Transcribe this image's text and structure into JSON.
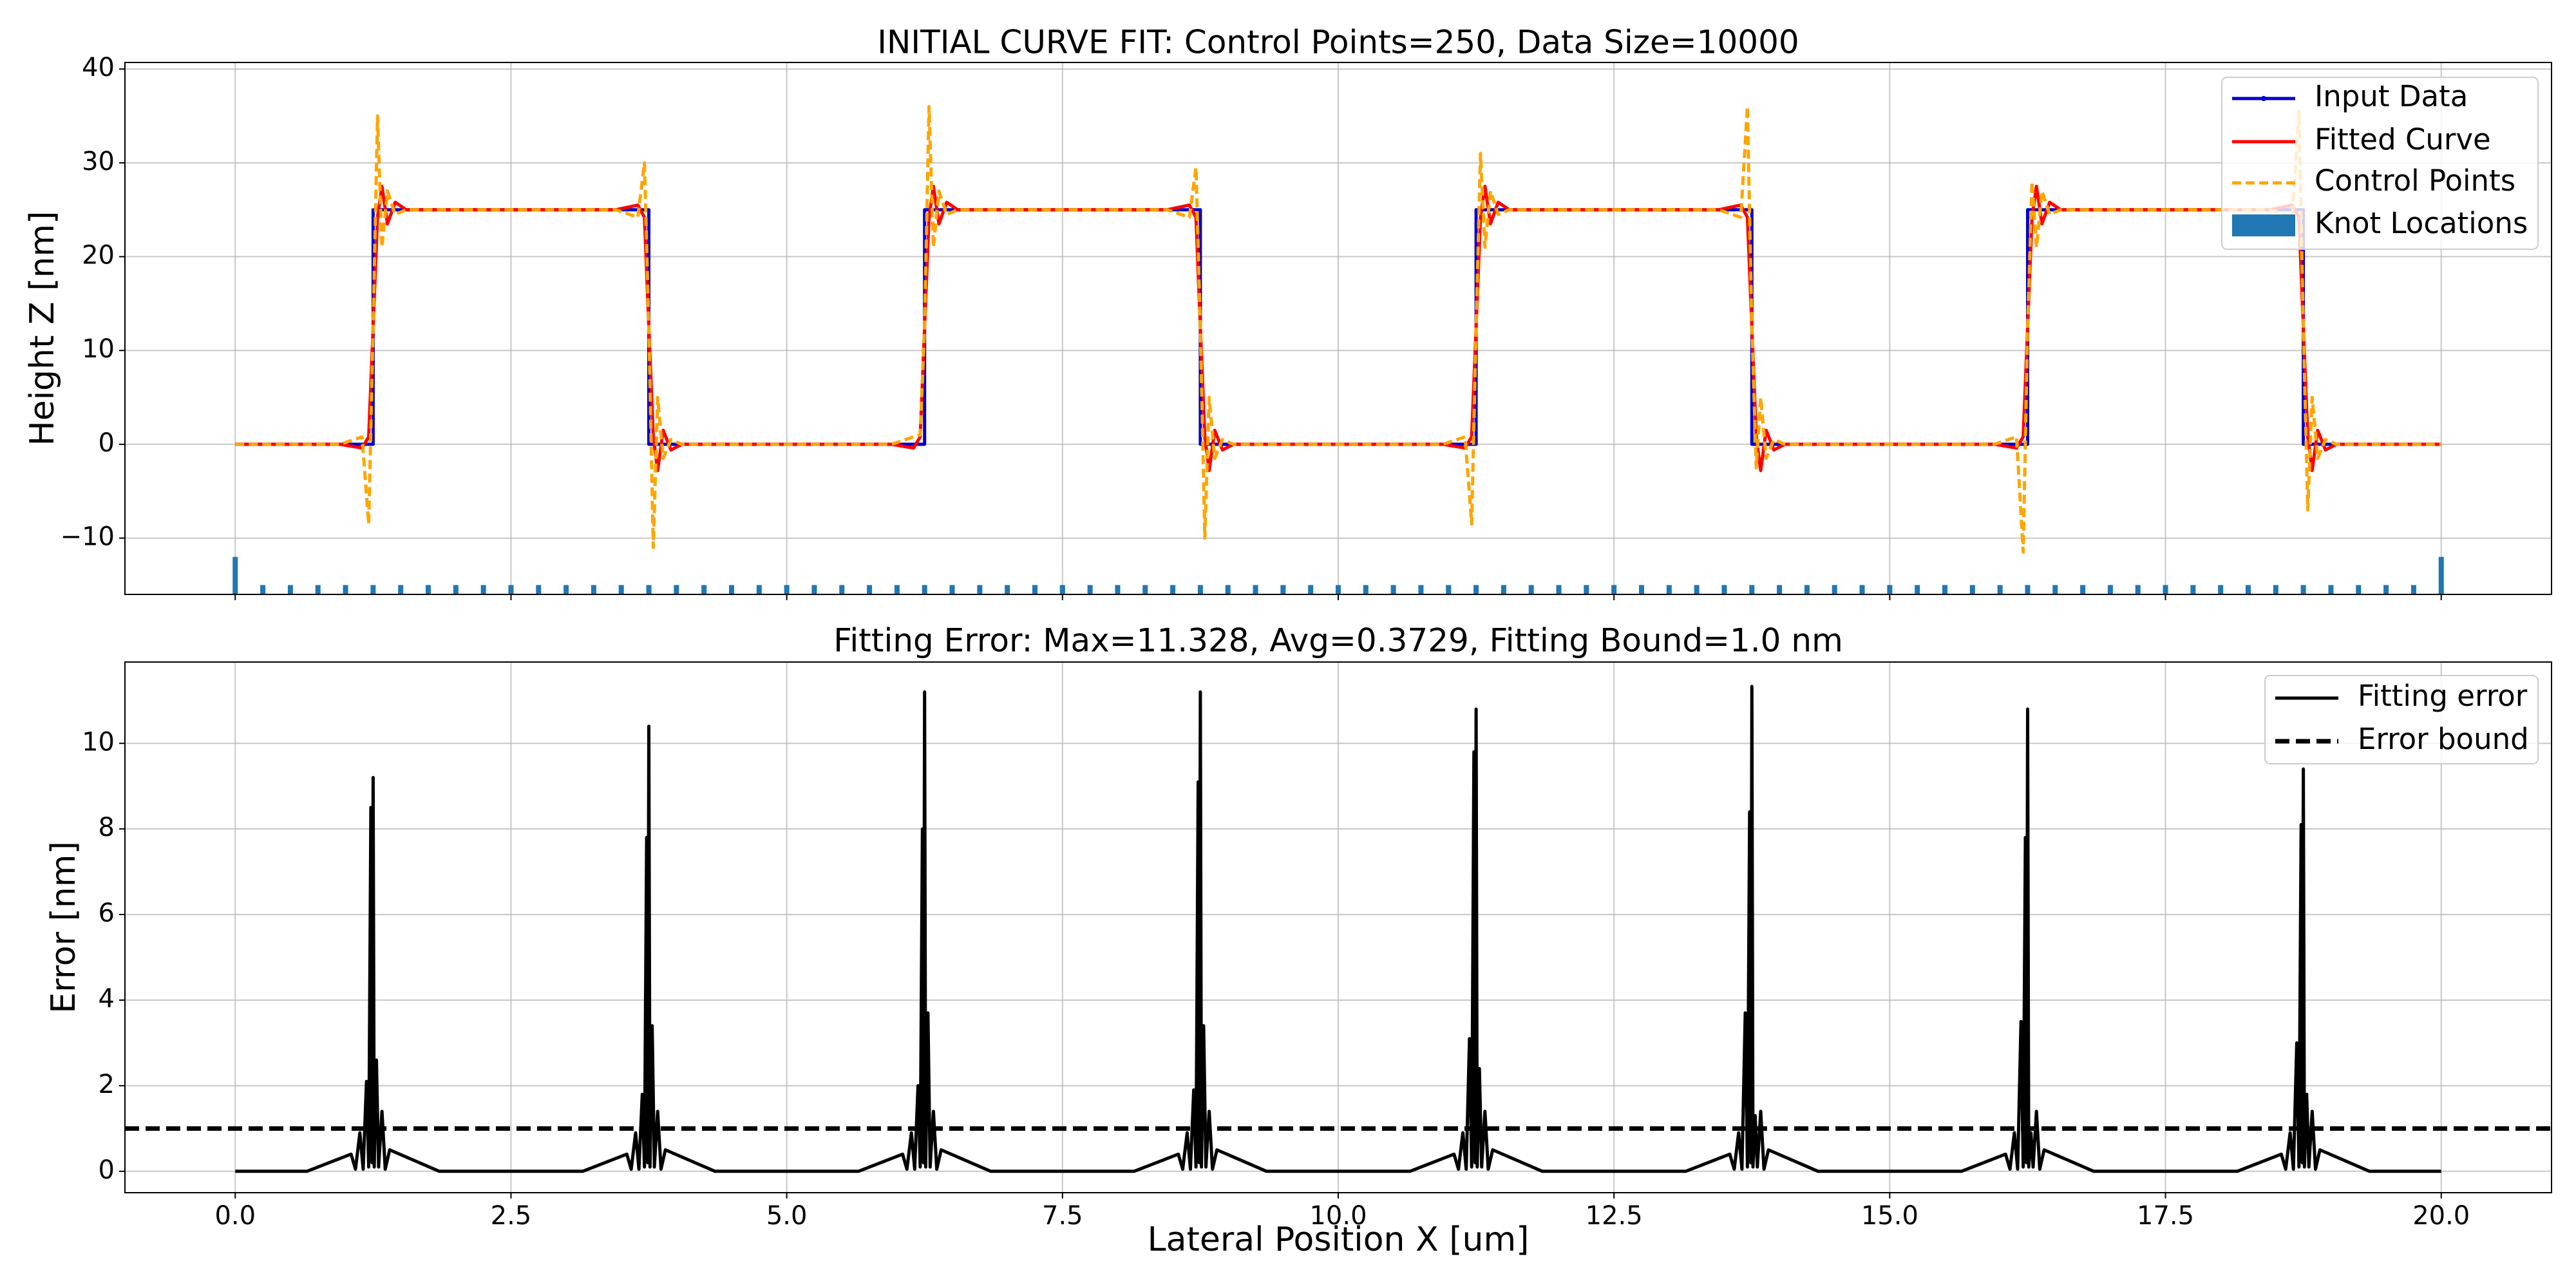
{
  "chart_data": [
    {
      "type": "line",
      "title": "INITIAL CURVE FIT: Control Points=250, Data Size=10000",
      "ylabel": "Height Z [nm]",
      "xlim": [
        -1,
        21
      ],
      "ylim": [
        -16,
        40.7
      ],
      "yticks": [
        {
          "value": -10,
          "label": "−10"
        },
        0,
        10,
        20,
        30,
        40
      ],
      "grid": true,
      "legend": "upper right",
      "series": [
        {
          "name": "Input Data",
          "color": "#0000cd",
          "style": "solid",
          "x": [
            0,
            1.25,
            1.25,
            3.75,
            3.75,
            6.25,
            6.25,
            8.75,
            8.75,
            11.25,
            11.25,
            13.75,
            13.75,
            16.25,
            16.25,
            18.75,
            18.75,
            20
          ],
          "values": [
            0,
            0,
            25,
            25,
            0,
            0,
            25,
            25,
            0,
            0,
            25,
            25,
            0,
            0,
            25,
            25,
            0,
            0
          ]
        },
        {
          "name": "Fitted Curve",
          "color": "#ff0000",
          "style": "solid",
          "x": [
            0,
            0.95,
            1.15,
            1.21,
            1.25,
            1.29,
            1.33,
            1.38,
            1.45,
            1.55,
            3.45,
            3.65,
            3.71,
            3.75,
            3.79,
            3.83,
            3.88,
            3.95,
            4.05,
            5.95,
            6.15,
            6.21,
            6.25,
            6.29,
            6.33,
            6.38,
            6.45,
            6.55,
            8.45,
            8.65,
            8.71,
            8.75,
            8.79,
            8.83,
            8.88,
            8.95,
            9.05,
            10.95,
            11.15,
            11.21,
            11.25,
            11.29,
            11.33,
            11.38,
            11.45,
            11.55,
            13.45,
            13.65,
            13.71,
            13.75,
            13.79,
            13.83,
            13.88,
            13.95,
            14.05,
            15.95,
            16.15,
            16.21,
            16.25,
            16.29,
            16.33,
            16.38,
            16.45,
            16.55,
            18.45,
            18.65,
            18.71,
            18.75,
            18.79,
            18.83,
            18.88,
            18.95,
            19.05,
            20
          ],
          "values": [
            0,
            0,
            -0.4,
            0.8,
            12.5,
            24.2,
            27.5,
            23.5,
            25.8,
            25,
            25,
            25.5,
            24.2,
            12.5,
            0.8,
            -2.8,
            1.5,
            -0.6,
            0,
            0,
            -0.4,
            0.8,
            12.5,
            24.2,
            27.5,
            23.5,
            25.8,
            25,
            25,
            25.5,
            24.2,
            12.5,
            0.8,
            -2.8,
            1.5,
            -0.6,
            0,
            0,
            -0.4,
            0.8,
            12.5,
            24.2,
            27.5,
            23.5,
            25.8,
            25,
            25,
            25.5,
            24.2,
            12.5,
            0.8,
            -2.8,
            1.5,
            -0.6,
            0,
            0,
            -0.4,
            0.8,
            12.5,
            24.2,
            27.5,
            23.5,
            25.8,
            25,
            25,
            25.5,
            24.2,
            12.5,
            0.8,
            -2.8,
            1.5,
            -0.6,
            0,
            0
          ]
        },
        {
          "name": "Control Points",
          "color": "#ffa500",
          "style": "dashed",
          "x": [
            0,
            0.95,
            1.15,
            1.21,
            1.25,
            1.29,
            1.33,
            1.38,
            1.45,
            1.55,
            3.45,
            3.65,
            3.71,
            3.75,
            3.79,
            3.83,
            3.88,
            3.95,
            4.05,
            5.95,
            6.15,
            6.21,
            6.25,
            6.29,
            6.33,
            6.38,
            6.45,
            6.55,
            8.45,
            8.65,
            8.71,
            8.75,
            8.79,
            8.83,
            8.88,
            8.95,
            9.05,
            10.95,
            11.15,
            11.21,
            11.25,
            11.29,
            11.33,
            11.38,
            11.45,
            11.55,
            13.45,
            13.65,
            13.71,
            13.75,
            13.79,
            13.83,
            13.88,
            13.95,
            14.05,
            15.95,
            16.15,
            16.21,
            16.25,
            16.29,
            16.33,
            16.38,
            16.45,
            16.55,
            18.45,
            18.65,
            18.71,
            18.75,
            18.79,
            18.83,
            18.88,
            18.95,
            19.05,
            20
          ],
          "values": [
            0,
            0,
            0.8,
            -8.5,
            12.5,
            35,
            21,
            27,
            24.5,
            25,
            25,
            24.2,
            30,
            12.5,
            -11,
            5,
            -1.5,
            0.5,
            0,
            0,
            0.8,
            1,
            12.5,
            36,
            21,
            27,
            24.5,
            25,
            25,
            24.2,
            29.5,
            12.5,
            -10,
            5,
            -1.5,
            0.5,
            0,
            0,
            0.8,
            -8.5,
            12.5,
            31,
            21,
            27,
            24.5,
            25,
            25,
            24.2,
            36,
            12.5,
            -2.5,
            5,
            -1.5,
            0.5,
            0,
            0,
            0.8,
            -11.5,
            12.5,
            28,
            21,
            27,
            24.5,
            25,
            25,
            24.2,
            35.5,
            12.5,
            -7,
            5,
            -1.5,
            0.5,
            0,
            0
          ]
        }
      ],
      "knots": {
        "name": "Knot Locations",
        "color": "#1f77b4",
        "x": [
          0,
          0.25,
          0.5,
          0.75,
          1,
          1.25,
          1.5,
          1.75,
          2,
          2.25,
          2.5,
          2.75,
          3,
          3.25,
          3.5,
          3.75,
          4,
          4.25,
          4.5,
          4.75,
          5,
          5.25,
          5.5,
          5.75,
          6,
          6.25,
          6.5,
          6.75,
          7,
          7.25,
          7.5,
          7.75,
          8,
          8.25,
          8.5,
          8.75,
          9,
          9.25,
          9.5,
          9.75,
          10,
          10.25,
          10.5,
          10.75,
          11,
          11.25,
          11.5,
          11.75,
          12,
          12.25,
          12.5,
          12.75,
          13,
          13.25,
          13.5,
          13.75,
          14,
          14.25,
          14.5,
          14.75,
          15,
          15.25,
          15.5,
          15.75,
          16,
          16.25,
          16.5,
          16.75,
          17,
          17.25,
          17.5,
          17.75,
          18,
          18.25,
          18.5,
          18.75,
          19,
          19.25,
          19.5,
          19.75,
          20
        ],
        "values": [
          -12,
          -15,
          -15,
          -15,
          -15,
          -15,
          -15,
          -15,
          -15,
          -15,
          -15,
          -15,
          -15,
          -15,
          -15,
          -15,
          -15,
          -15,
          -15,
          -15,
          -15,
          -15,
          -15,
          -15,
          -15,
          -15,
          -15,
          -15,
          -15,
          -15,
          -15,
          -15,
          -15,
          -15,
          -15,
          -15,
          -15,
          -15,
          -15,
          -15,
          -15,
          -15,
          -15,
          -15,
          -15,
          -15,
          -15,
          -15,
          -15,
          -15,
          -15,
          -15,
          -15,
          -15,
          -15,
          -15,
          -15,
          -15,
          -15,
          -15,
          -15,
          -15,
          -15,
          -15,
          -15,
          -15,
          -15,
          -15,
          -15,
          -15,
          -15,
          -15,
          -15,
          -15,
          -15,
          -15,
          -15,
          -15,
          -15,
          -15,
          -12
        ]
      }
    },
    {
      "type": "line",
      "title": "Fitting Error: Max=11.328, Avg=0.3729, Fitting Bound=1.0 nm",
      "xlabel": "Lateral Position X [um]",
      "ylabel": "Error [nm]",
      "xlim": [
        -1,
        21
      ],
      "ylim": [
        -0.5,
        11.9
      ],
      "xticks": [
        {
          "value": 0,
          "label": "0.0"
        },
        2.5,
        {
          "value": 5,
          "label": "5.0"
        },
        7.5,
        {
          "value": 10,
          "label": "10.0"
        },
        12.5,
        {
          "value": 15,
          "label": "15.0"
        },
        17.5,
        {
          "value": 20,
          "label": "20.0"
        }
      ],
      "yticks": [
        0,
        2,
        4,
        6,
        8,
        10
      ],
      "grid": true,
      "legend": "upper right",
      "series": [
        {
          "name": "Fitting error",
          "color": "#000000",
          "style": "solid",
          "x": [
            0,
            0.65,
            1.05,
            1.09,
            1.13,
            1.16,
            1.19,
            1.21,
            1.23,
            1.24,
            1.25,
            1.26,
            1.28,
            1.3,
            1.33,
            1.36,
            1.4,
            1.85,
            3.15,
            3.55,
            3.59,
            3.63,
            3.66,
            3.69,
            3.71,
            3.73,
            3.74,
            3.75,
            3.76,
            3.78,
            3.8,
            3.83,
            3.86,
            3.9,
            4.35,
            5.65,
            6.05,
            6.09,
            6.13,
            6.16,
            6.19,
            6.21,
            6.23,
            6.24,
            6.25,
            6.26,
            6.28,
            6.3,
            6.33,
            6.36,
            6.4,
            6.85,
            8.15,
            8.55,
            8.59,
            8.63,
            8.66,
            8.69,
            8.71,
            8.73,
            8.74,
            8.75,
            8.76,
            8.78,
            8.8,
            8.83,
            8.86,
            8.9,
            9.35,
            10.65,
            11.05,
            11.09,
            11.13,
            11.16,
            11.19,
            11.21,
            11.23,
            11.24,
            11.25,
            11.26,
            11.28,
            11.3,
            11.33,
            11.36,
            11.4,
            11.85,
            13.15,
            13.55,
            13.59,
            13.63,
            13.66,
            13.69,
            13.71,
            13.73,
            13.74,
            13.75,
            13.76,
            13.78,
            13.8,
            13.83,
            13.86,
            13.9,
            14.35,
            15.65,
            16.05,
            16.09,
            16.13,
            16.16,
            16.19,
            16.21,
            16.23,
            16.24,
            16.25,
            16.26,
            16.28,
            16.3,
            16.33,
            16.36,
            16.4,
            16.85,
            18.15,
            18.55,
            18.59,
            18.63,
            18.66,
            18.69,
            18.71,
            18.73,
            18.74,
            18.75,
            18.76,
            18.78,
            18.8,
            18.83,
            18.86,
            18.9,
            19.35,
            20
          ],
          "values": [
            0,
            0,
            0.4,
            0.05,
            0.9,
            0.05,
            2.1,
            0.1,
            8.5,
            0.2,
            9.2,
            0.1,
            2.6,
            0.1,
            1.4,
            0.05,
            0.5,
            0,
            0,
            0.4,
            0.05,
            0.9,
            0.05,
            1.8,
            0.1,
            7.8,
            0.2,
            10.4,
            0.1,
            3.4,
            0.1,
            1.4,
            0.05,
            0.5,
            0,
            0,
            0.4,
            0.05,
            0.9,
            0.05,
            2.0,
            0.1,
            8.0,
            0.2,
            11.2,
            0.1,
            3.7,
            0.1,
            1.4,
            0.05,
            0.5,
            0,
            0,
            0.4,
            0.05,
            0.9,
            0.05,
            1.9,
            0.1,
            9.1,
            0.2,
            11.2,
            0.1,
            3.4,
            0.1,
            1.4,
            0.05,
            0.5,
            0,
            0,
            0.4,
            0.05,
            0.9,
            0.05,
            3.1,
            0.1,
            9.8,
            0.2,
            10.8,
            0.1,
            2.4,
            0.1,
            1.4,
            0.05,
            0.5,
            0,
            0,
            0.4,
            0.05,
            0.9,
            0.05,
            3.7,
            0.1,
            8.4,
            0.2,
            11.33,
            0.1,
            1.3,
            0.1,
            1.4,
            0.05,
            0.5,
            0,
            0,
            0.4,
            0.05,
            0.9,
            0.05,
            3.5,
            0.1,
            7.8,
            0.2,
            10.8,
            0.1,
            0.9,
            0.1,
            1.4,
            0.05,
            0.5,
            0,
            0,
            0.4,
            0.05,
            0.9,
            0.05,
            3.0,
            0.1,
            8.1,
            0.2,
            9.4,
            0.1,
            1.8,
            0.1,
            1.4,
            0.05,
            0.5,
            0,
            0
          ]
        },
        {
          "name": "Error bound",
          "color": "#000000",
          "style": "dashed",
          "hline": 1.0
        }
      ]
    }
  ]
}
